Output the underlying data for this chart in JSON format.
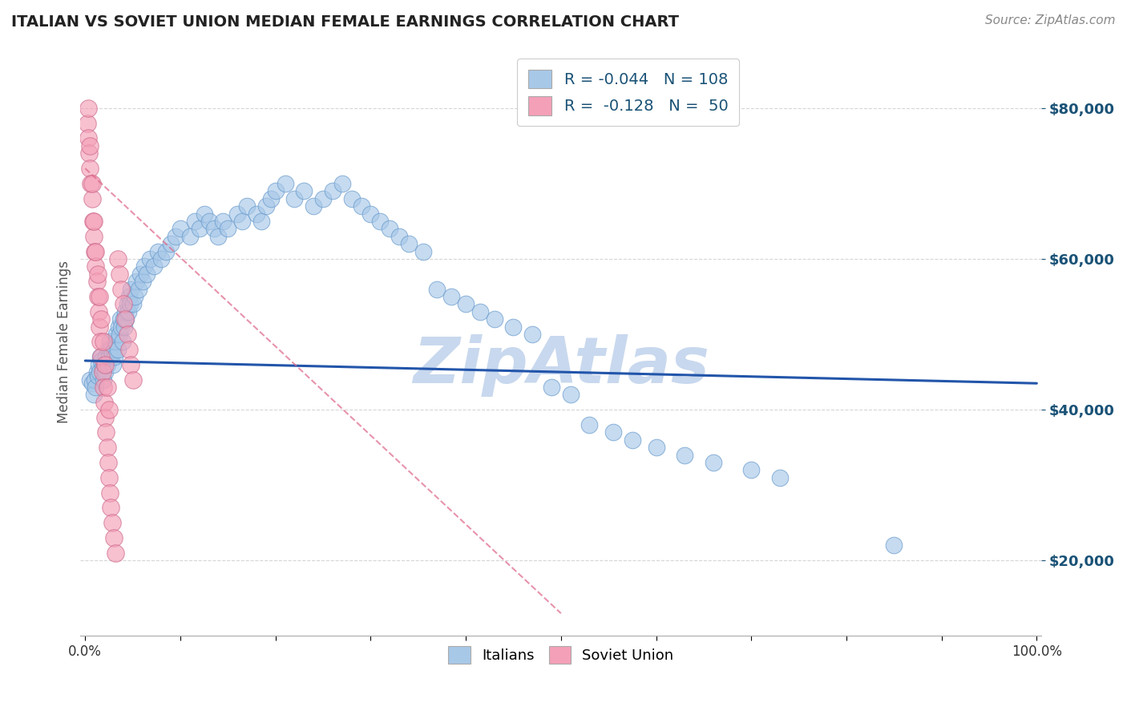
{
  "title": "ITALIAN VS SOVIET UNION MEDIAN FEMALE EARNINGS CORRELATION CHART",
  "source_text": "Source: ZipAtlas.com",
  "ylabel": "Median Female Earnings",
  "watermark": "ZipAtlas",
  "xlim": [
    -0.005,
    1.005
  ],
  "ylim": [
    10000,
    88000
  ],
  "yticks": [
    20000,
    40000,
    60000,
    80000
  ],
  "ytick_labels": [
    "$20,000",
    "$40,000",
    "$60,000",
    "$80,000"
  ],
  "xticks": [
    0.0,
    0.1,
    0.2,
    0.3,
    0.4,
    0.5,
    0.6,
    0.7,
    0.8,
    0.9,
    1.0
  ],
  "legend_entries": [
    {
      "label": "Italians",
      "color": "#a8c8e8",
      "R": "-0.044",
      "N": "108"
    },
    {
      "label": "Soviet Union",
      "color": "#f4a0b8",
      "R": "-0.128",
      "N": "50"
    }
  ],
  "blue_scatter_x": [
    0.005,
    0.007,
    0.009,
    0.01,
    0.011,
    0.012,
    0.013,
    0.014,
    0.015,
    0.016,
    0.017,
    0.018,
    0.019,
    0.02,
    0.021,
    0.022,
    0.023,
    0.024,
    0.025,
    0.026,
    0.027,
    0.028,
    0.029,
    0.03,
    0.031,
    0.032,
    0.033,
    0.034,
    0.035,
    0.036,
    0.037,
    0.038,
    0.039,
    0.04,
    0.041,
    0.042,
    0.043,
    0.044,
    0.045,
    0.046,
    0.047,
    0.048,
    0.05,
    0.052,
    0.054,
    0.056,
    0.058,
    0.06,
    0.062,
    0.065,
    0.068,
    0.072,
    0.076,
    0.08,
    0.085,
    0.09,
    0.095,
    0.1,
    0.11,
    0.115,
    0.12,
    0.125,
    0.13,
    0.135,
    0.14,
    0.145,
    0.15,
    0.16,
    0.165,
    0.17,
    0.18,
    0.185,
    0.19,
    0.195,
    0.2,
    0.21,
    0.22,
    0.23,
    0.24,
    0.25,
    0.26,
    0.27,
    0.28,
    0.29,
    0.3,
    0.31,
    0.32,
    0.33,
    0.34,
    0.355,
    0.37,
    0.385,
    0.4,
    0.415,
    0.43,
    0.45,
    0.47,
    0.49,
    0.51,
    0.53,
    0.555,
    0.575,
    0.6,
    0.63,
    0.66,
    0.7,
    0.73,
    0.85
  ],
  "blue_scatter_y": [
    44000,
    43500,
    42000,
    44000,
    43000,
    45000,
    44500,
    46000,
    45000,
    47000,
    46500,
    45500,
    44000,
    46000,
    45000,
    47000,
    46000,
    48000,
    47000,
    49000,
    48000,
    47500,
    46000,
    48000,
    47000,
    49000,
    50000,
    48000,
    51000,
    50000,
    52000,
    51000,
    49000,
    52000,
    51000,
    53000,
    52000,
    54000,
    53000,
    55000,
    54000,
    56000,
    54000,
    55000,
    57000,
    56000,
    58000,
    57000,
    59000,
    58000,
    60000,
    59000,
    61000,
    60000,
    61000,
    62000,
    63000,
    64000,
    63000,
    65000,
    64000,
    66000,
    65000,
    64000,
    63000,
    65000,
    64000,
    66000,
    65000,
    67000,
    66000,
    65000,
    67000,
    68000,
    69000,
    70000,
    68000,
    69000,
    67000,
    68000,
    69000,
    70000,
    68000,
    67000,
    66000,
    65000,
    64000,
    63000,
    62000,
    61000,
    56000,
    55000,
    54000,
    53000,
    52000,
    51000,
    50000,
    43000,
    42000,
    38000,
    37000,
    36000,
    35000,
    34000,
    33000,
    32000,
    31000,
    22000
  ],
  "pink_scatter_x": [
    0.002,
    0.003,
    0.004,
    0.005,
    0.006,
    0.007,
    0.008,
    0.009,
    0.01,
    0.011,
    0.012,
    0.013,
    0.014,
    0.015,
    0.016,
    0.017,
    0.018,
    0.019,
    0.02,
    0.021,
    0.022,
    0.023,
    0.024,
    0.025,
    0.026,
    0.027,
    0.028,
    0.03,
    0.032,
    0.034,
    0.036,
    0.038,
    0.04,
    0.042,
    0.044,
    0.046,
    0.048,
    0.05,
    0.003,
    0.005,
    0.007,
    0.009,
    0.011,
    0.013,
    0.015,
    0.017,
    0.019,
    0.021,
    0.023,
    0.025
  ],
  "pink_scatter_y": [
    78000,
    76000,
    74000,
    72000,
    70000,
    68000,
    65000,
    63000,
    61000,
    59000,
    57000,
    55000,
    53000,
    51000,
    49000,
    47000,
    45000,
    43000,
    41000,
    39000,
    37000,
    35000,
    33000,
    31000,
    29000,
    27000,
    25000,
    23000,
    21000,
    60000,
    58000,
    56000,
    54000,
    52000,
    50000,
    48000,
    46000,
    44000,
    80000,
    75000,
    70000,
    65000,
    61000,
    58000,
    55000,
    52000,
    49000,
    46000,
    43000,
    40000
  ],
  "blue_line_x": [
    0.0,
    1.0
  ],
  "blue_line_y": [
    46500,
    43500
  ],
  "pink_line_x": [
    0.0,
    0.5
  ],
  "pink_line_y": [
    72000,
    13000
  ],
  "blue_color": "#a8c8e8",
  "blue_edge_color": "#6699cc",
  "pink_color": "#f4a0b8",
  "pink_edge_color": "#cc6688",
  "blue_line_color": "#2255aa",
  "pink_line_color": "#dd6688",
  "title_color": "#222222",
  "axis_label_color": "#555555",
  "tick_color": "#1a5276",
  "grid_color": "#cccccc",
  "background_color": "#ffffff",
  "watermark_color": "#c8d8ee",
  "figsize": [
    14.06,
    8.92
  ],
  "dpi": 100
}
